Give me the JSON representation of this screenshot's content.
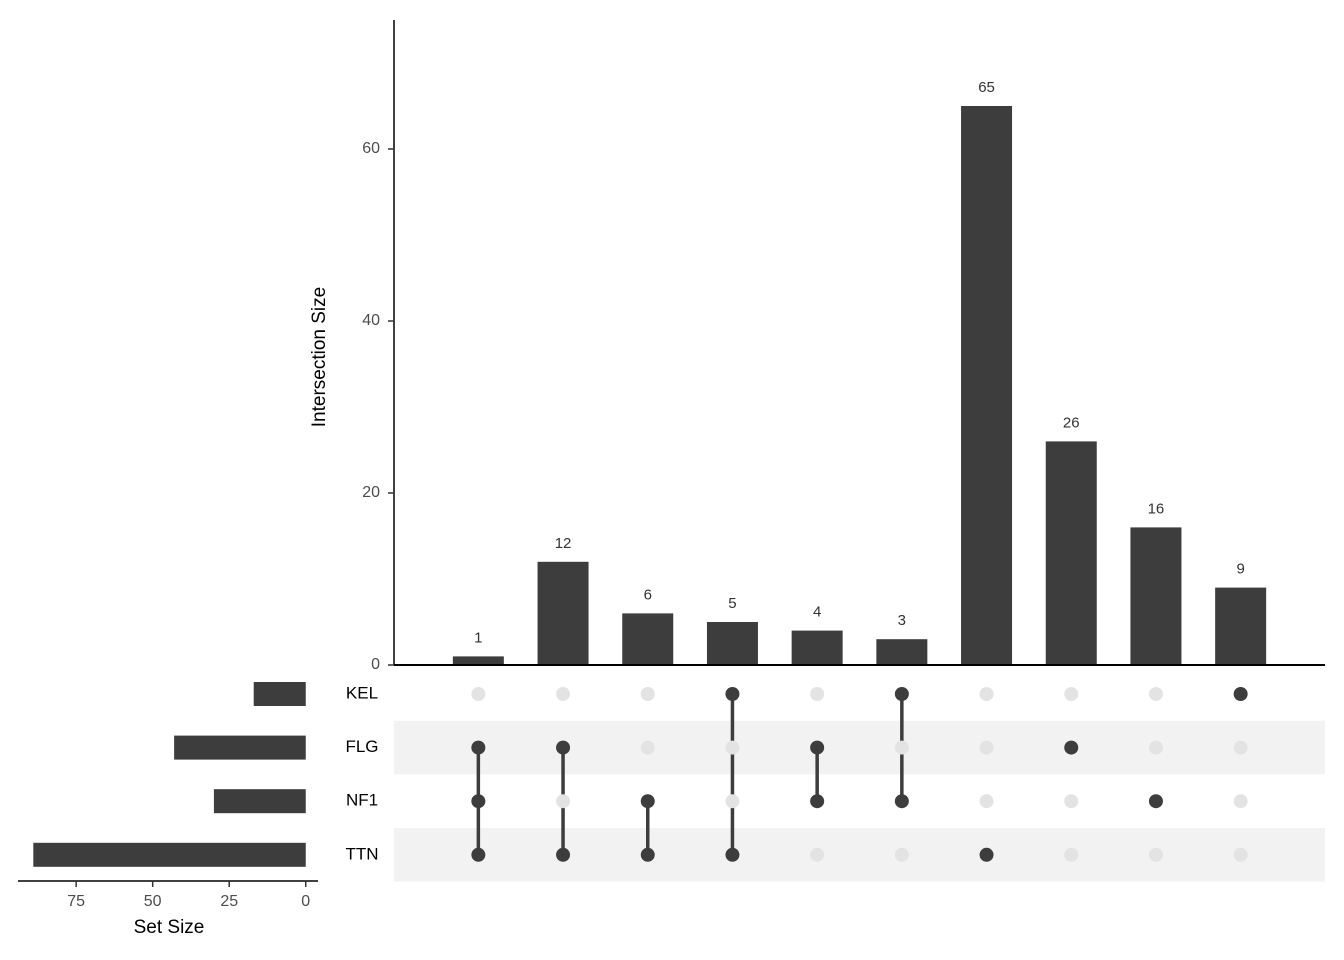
{
  "chart_data": {
    "type": "upset",
    "y_label": "Intersection Size",
    "x_label": "Set Size",
    "sets": [
      "KEL",
      "FLG",
      "NF1",
      "TTN"
    ],
    "set_sizes": [
      17,
      43,
      30,
      89
    ],
    "xlim": [
      94,
      -4
    ],
    "xticks": [
      75,
      50,
      25,
      0
    ],
    "intersections": [
      [
        "FLG",
        "NF1",
        "TTN"
      ],
      [
        "FLG",
        "TTN"
      ],
      [
        "NF1",
        "TTN"
      ],
      [
        "KEL",
        "TTN"
      ],
      [
        "FLG",
        "NF1"
      ],
      [
        "KEL",
        "NF1"
      ],
      [
        "TTN"
      ],
      [
        "FLG"
      ],
      [
        "NF1"
      ],
      [
        "KEL"
      ]
    ],
    "values": [
      1,
      12,
      6,
      5,
      4,
      3,
      65,
      26,
      16,
      9
    ],
    "ylim": [
      0,
      75
    ],
    "yticks": [
      0,
      20,
      40,
      60
    ],
    "color": "#3d3d3d"
  }
}
